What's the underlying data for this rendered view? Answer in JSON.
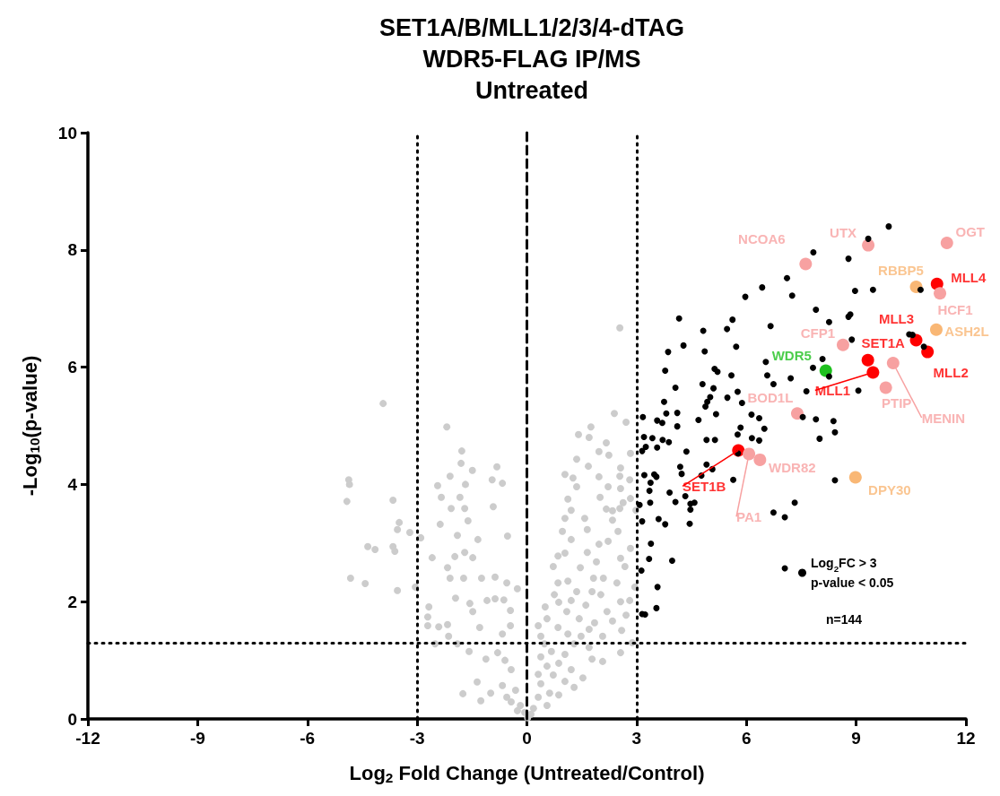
{
  "chart_data": {
    "type": "scatter",
    "title": "SET1A/B/MLL1/2/3/4-dTAG\nWDR5-FLAG IP/MS\nUntreated",
    "xlabel": "Log$_{2}$ Fold Change (Untreated/Control)",
    "ylabel": "-Log$_{10}$(p-value)",
    "xlim": [
      -12,
      12
    ],
    "xticks": [
      -12,
      -9,
      -6,
      -3,
      0,
      3,
      6,
      9,
      12
    ],
    "ylim": [
      0,
      10
    ],
    "yticks": [
      0,
      2,
      4,
      6,
      8,
      10
    ],
    "grid": false,
    "marker": "circle",
    "legend": "bottom right",
    "series": [
      {
        "color": "#cccccc",
        "x": [
          -3.93,
          -2.19,
          -4.87,
          -4.85,
          -4.92,
          -3.66,
          -1.78,
          -1.8,
          -1.49,
          -0.82,
          -2.1,
          -2.44,
          -1.68,
          -0.95,
          -0.67,
          -2.34,
          -1.83,
          -0.92,
          -2.07,
          -1.7,
          -3.49,
          -3.54,
          -3.2,
          -2.37,
          -1.61,
          -2.9,
          -4.35,
          -4.15,
          -3.66,
          -3.61,
          -1.9,
          -1.34,
          -0.53,
          -2.59,
          -1.97,
          -1.7,
          -1.48,
          -2.17,
          -4.82,
          -4.42,
          -3.54,
          -3.05,
          -2.1,
          -1.73,
          -1.24,
          -0.87,
          -0.55,
          -0.26,
          -1.95,
          -1.56,
          -1.48,
          -1.09,
          -0.87,
          -0.63,
          -0.45,
          -2.68,
          -2.71,
          -2.71,
          -2.41,
          -2.17,
          -2.14,
          -2.51,
          -1.9,
          -1.29,
          -0.67,
          -0.45,
          -1.58,
          -1.12,
          -0.8,
          -0.6,
          -0.43,
          -1.36,
          -1.75,
          -1.26,
          -0.99,
          -0.67,
          -0.55,
          -0.31,
          -0.18,
          -0.06,
          0.02,
          -0.26,
          -0.43,
          2.54,
          1.75,
          1.41,
          1.7,
          2.39,
          2.71,
          2.17,
          1.97,
          2.24,
          2.83,
          1.36,
          1.68,
          2.56,
          1.04,
          1.26,
          1.97,
          2.54,
          2.81,
          1.36,
          2.22,
          2.56,
          1.12,
          2.0,
          2.63,
          2.83,
          1.21,
          2.17,
          2.34,
          2.54,
          2.98,
          1.04,
          1.58,
          2.34,
          1.65,
          2.49,
          0.97,
          1.21,
          1.97,
          2.22,
          2.83,
          1.04,
          1.65,
          2.56,
          0.85,
          1.9,
          0.72,
          1.46,
          2.68,
          1.12,
          1.82,
          2.09,
          0.85,
          2.46,
          2.95,
          1.36,
          1.78,
          0.75,
          2.02,
          1.21,
          2.56,
          2.81,
          0.5,
          0.87,
          1.61,
          1.09,
          2.19,
          2.71,
          0.55,
          1.43,
          1.85,
          2.34,
          0.31,
          0.85,
          1.7,
          2.59,
          0.38,
          1.12,
          1.48,
          2.07,
          0.48,
          1.29,
          1.7,
          2.88,
          0.67,
          1.04,
          1.78,
          2.56,
          2.07,
          0.38,
          0.55,
          0.87,
          1.21,
          1.53,
          0.31,
          0.72,
          1.04,
          1.29,
          0.38,
          0.62,
          0.87,
          0.31,
          0.55,
          0.18,
          0.11
        ],
        "values": [
          5.38,
          4.98,
          4.08,
          4.0,
          3.71,
          3.73,
          4.57,
          4.36,
          4.24,
          4.3,
          4.14,
          3.98,
          4.0,
          4.08,
          4.02,
          3.78,
          3.78,
          3.62,
          3.59,
          3.59,
          3.35,
          3.23,
          3.18,
          3.32,
          3.38,
          3.09,
          2.94,
          2.89,
          2.94,
          2.86,
          3.13,
          3.06,
          3.12,
          2.75,
          2.77,
          2.84,
          2.75,
          2.58,
          2.4,
          2.31,
          2.19,
          2.25,
          2.4,
          2.4,
          2.4,
          2.42,
          2.32,
          2.22,
          2.06,
          1.97,
          1.83,
          2.02,
          2.05,
          2.03,
          1.85,
          1.91,
          1.74,
          1.59,
          1.57,
          1.61,
          1.41,
          1.28,
          1.28,
          1.56,
          1.45,
          1.59,
          1.15,
          1.02,
          1.13,
          1.0,
          0.84,
          0.63,
          0.43,
          0.31,
          0.44,
          0.57,
          0.37,
          0.49,
          0.23,
          0.11,
          0.02,
          0.14,
          0.29,
          6.67,
          4.98,
          4.85,
          4.8,
          5.21,
          5.06,
          4.71,
          4.56,
          4.5,
          4.53,
          4.43,
          4.31,
          4.28,
          4.17,
          4.11,
          4.13,
          4.14,
          4.08,
          3.96,
          3.96,
          3.93,
          3.75,
          3.78,
          3.69,
          3.76,
          3.56,
          3.58,
          3.55,
          3.59,
          3.56,
          3.42,
          3.42,
          3.39,
          3.23,
          3.2,
          3.2,
          3.06,
          2.98,
          3.03,
          2.91,
          2.83,
          2.84,
          2.74,
          2.78,
          2.68,
          2.6,
          2.58,
          2.6,
          2.35,
          2.4,
          2.4,
          2.32,
          2.32,
          2.25,
          2.17,
          2.17,
          2.12,
          2.12,
          2.02,
          2.0,
          2.02,
          1.91,
          1.99,
          1.94,
          1.83,
          1.83,
          1.77,
          1.71,
          1.71,
          1.64,
          1.67,
          1.59,
          1.56,
          1.53,
          1.51,
          1.41,
          1.45,
          1.41,
          1.41,
          1.28,
          1.28,
          1.22,
          1.3,
          1.15,
          1.1,
          1.02,
          1.13,
          0.98,
          1.06,
          0.9,
          0.95,
          0.84,
          0.7,
          0.76,
          0.75,
          0.64,
          0.54,
          0.6,
          0.44,
          0.41,
          0.37,
          0.23,
          0.18,
          0.08
        ]
      },
      {
        "name": "Log$_{2}$FC > 3\np-value < 0.05",
        "color": "#000000",
        "x": [
          7.11,
          6.43,
          7.25,
          5.97,
          4.16,
          5.62,
          5.47,
          6.66,
          4.82,
          5.72,
          4.28,
          4.86,
          3.86,
          6.53,
          5.13,
          5.21,
          3.78,
          5.59,
          6.57,
          7.21,
          6.74,
          4.8,
          4.06,
          5.1,
          5.76,
          5.48,
          5.01,
          4.93,
          3.75,
          5.88,
          4.88,
          3.81,
          4.11,
          5.17,
          6.14,
          6.35,
          3.17,
          3.56,
          3.7,
          4.69,
          4.11,
          5.84,
          6.49,
          5.76,
          3.2,
          3.43,
          3.71,
          3.88,
          4.91,
          5.14,
          6.15,
          6.35,
          3.25,
          3.15,
          3.56,
          4.36,
          5.77,
          4.91,
          5.07,
          4.19,
          3.21,
          3.48,
          3.54,
          4.23,
          4.77,
          5.64,
          3.38,
          3.35,
          3.9,
          4.33,
          3.08,
          3.37,
          4.06,
          4.47,
          4.58,
          4.47,
          7.32,
          6.74,
          7.05,
          3.6,
          3.78,
          4.45,
          3.15,
          3.39,
          3.34,
          3.97,
          3.13,
          7.05,
          3.57,
          3.54,
          3.15,
          3.23,
          9.89,
          9.33,
          7.83,
          8.79,
          8.97,
          9.46,
          10.76,
          7.9,
          8.84,
          8.79,
          8.26,
          10.45,
          10.54,
          8.88,
          10.85,
          8.08,
          7.82,
          8.26,
          7.64,
          9.06,
          7.54,
          7.9,
          8.38,
          8.42,
          8.0,
          8.42
        ],
        "values": [
          7.52,
          7.36,
          7.22,
          7.2,
          6.83,
          6.81,
          6.65,
          6.7,
          6.62,
          6.35,
          6.37,
          6.27,
          6.26,
          6.09,
          5.97,
          5.92,
          5.94,
          5.86,
          5.86,
          5.81,
          5.71,
          5.71,
          5.65,
          5.64,
          5.58,
          5.48,
          5.49,
          5.41,
          5.41,
          5.39,
          5.33,
          5.21,
          5.22,
          5.2,
          5.19,
          5.13,
          5.15,
          5.09,
          5.05,
          5.1,
          4.99,
          4.97,
          4.95,
          4.85,
          4.81,
          4.79,
          4.76,
          4.72,
          4.76,
          4.76,
          4.79,
          4.75,
          4.64,
          4.57,
          4.63,
          4.56,
          4.53,
          4.34,
          4.26,
          4.3,
          4.16,
          4.17,
          4.13,
          4.18,
          4.15,
          4.08,
          4.03,
          3.89,
          3.86,
          3.8,
          3.65,
          3.69,
          3.7,
          3.67,
          3.69,
          3.57,
          3.69,
          3.52,
          3.44,
          3.41,
          3.32,
          3.33,
          3.37,
          2.99,
          2.73,
          2.7,
          2.53,
          2.57,
          2.25,
          1.89,
          1.79,
          1.78,
          8.4,
          8.19,
          7.96,
          7.85,
          7.3,
          7.32,
          7.32,
          6.98,
          6.9,
          6.86,
          6.77,
          6.56,
          6.55,
          6.47,
          6.35,
          6.14,
          5.99,
          5.84,
          5.59,
          5.6,
          5.15,
          5.11,
          5.08,
          4.89,
          4.78,
          4.07
        ]
      },
      {
        "color": "#ff0000",
        "x": [
          11.21,
          10.64,
          10.95,
          9.32,
          9.46,
          5.78
        ],
        "values": [
          7.42,
          6.46,
          6.26,
          6.12,
          5.91,
          4.58
        ]
      },
      {
        "color": "#f7a1a1",
        "x": [
          9.33,
          11.48,
          7.62,
          11.29,
          8.64,
          10.01,
          9.81,
          7.39,
          6.07,
          6.37
        ],
        "values": [
          8.08,
          8.12,
          7.76,
          7.26,
          6.38,
          6.07,
          5.65,
          5.21,
          4.52,
          4.42
        ]
      },
      {
        "color": "#f9b775",
        "x": [
          10.64,
          11.19,
          8.98
        ],
        "values": [
          7.37,
          6.64,
          4.12
        ]
      },
      {
        "color": "#1ec01e",
        "x": [
          8.17
        ],
        "values": [
          5.94
        ]
      }
    ],
    "ref_lines": [
      {
        "axis": "x",
        "value": -3,
        "line_style": "dotted"
      },
      {
        "axis": "x",
        "value": 0,
        "line_style": "dashed"
      },
      {
        "axis": "x",
        "value": 3,
        "line_style": "dotted"
      },
      {
        "axis": "y",
        "value": 1.3,
        "line_style": "dotted"
      }
    ],
    "annotations": [
      {
        "text": "UTX",
        "x": 9.33,
        "y": 8.08
      },
      {
        "text": "OGT",
        "x": 11.48,
        "y": 8.12
      },
      {
        "text": "NCOA6",
        "x": 7.62,
        "y": 7.76
      },
      {
        "text": "RBBP5",
        "x": 10.64,
        "y": 7.37
      },
      {
        "text": "MLL4",
        "x": 11.21,
        "y": 7.42
      },
      {
        "text": "HCF1",
        "x": 11.29,
        "y": 7.26
      },
      {
        "text": "ASH2L",
        "x": 11.19,
        "y": 6.64
      },
      {
        "text": "MLL3",
        "x": 10.64,
        "y": 6.46
      },
      {
        "text": "MLL2",
        "x": 10.95,
        "y": 6.26
      },
      {
        "text": "CFP1",
        "x": 8.64,
        "y": 6.38
      },
      {
        "text": "SET1A",
        "x": 9.32,
        "y": 6.12
      },
      {
        "text": "MENIN",
        "x": 10.01,
        "y": 6.07
      },
      {
        "text": "WDR5",
        "x": 8.17,
        "y": 5.94
      },
      {
        "text": "MLL1",
        "x": 9.46,
        "y": 5.91
      },
      {
        "text": "PTIP",
        "x": 9.81,
        "y": 5.65
      },
      {
        "text": "BOD1L",
        "x": 7.39,
        "y": 5.21
      },
      {
        "text": "DPY30",
        "x": 8.98,
        "y": 4.12
      },
      {
        "text": "SET1B",
        "x": 5.78,
        "y": 4.58
      },
      {
        "text": "PA1",
        "x": 6.07,
        "y": 4.52
      },
      {
        "text": "WDR82",
        "x": 6.37,
        "y": 4.42
      },
      "n=144"
    ]
  }
}
